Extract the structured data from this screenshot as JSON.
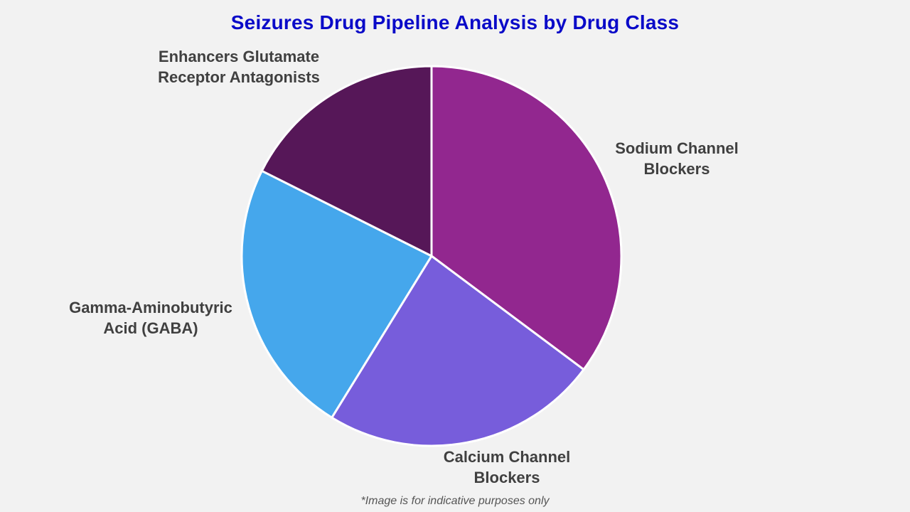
{
  "title": "Seizures Drug Pipeline Analysis by Drug Class",
  "footnote": "*Image is for indicative purposes only",
  "labels": {
    "sodium": [
      "Sodium Channel",
      "Blockers"
    ],
    "calcium": [
      "Calcium Channel",
      "Blockers"
    ],
    "gaba": [
      "Gamma-Aminobutyric",
      "Acid (GABA)"
    ],
    "enhancers": [
      "Enhancers Glutamate",
      "Receptor Antagonists"
    ]
  },
  "colors": {
    "sodium": "#92278f",
    "calcium": "#775ddb",
    "gaba": "#45a7ec",
    "enhancers": "#561758",
    "title": "#0a0ac8",
    "background": "#f2f2f2"
  },
  "chart_data": {
    "type": "pie",
    "title": "Seizures Drug Pipeline Analysis by Drug Class",
    "categories": [
      "Sodium Channel Blockers",
      "Calcium Channel Blockers",
      "Gamma-Aminobutyric Acid (GABA)",
      "Enhancers Glutamate Receptor Antagonists"
    ],
    "values": [
      35.2,
      23.6,
      23.6,
      17.6
    ],
    "unit": "% (estimated share)",
    "start_angle": "12 o'clock, clockwise",
    "legend": "none (direct labels)",
    "annotations": [
      "*Image is for indicative purposes only"
    ]
  }
}
